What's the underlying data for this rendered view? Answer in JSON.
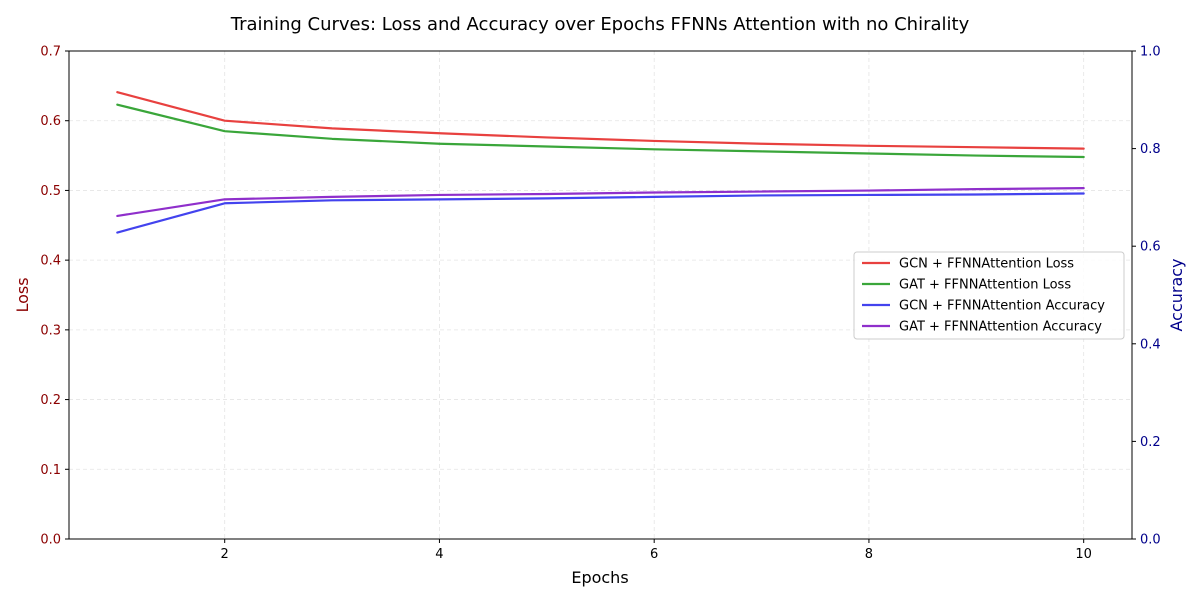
{
  "chart_data": {
    "type": "line",
    "title": "Training Curves: Loss and Accuracy over Epochs FFNNs Attention with no Chirality",
    "xlabel": "Epochs",
    "ylabel_left": "Loss",
    "ylabel_right": "Accuracy",
    "xlim": [
      0.55,
      10.45
    ],
    "ylim_left": [
      0,
      0.7
    ],
    "ylim_right": [
      0,
      1.0
    ],
    "x_ticks": [
      2,
      4,
      6,
      8,
      10
    ],
    "y_ticks_left": [
      0.0,
      0.1,
      0.2,
      0.3,
      0.4,
      0.5,
      0.6,
      0.7
    ],
    "y_ticks_right": [
      0.0,
      0.2,
      0.4,
      0.6,
      0.8,
      1.0
    ],
    "left_axis_color": "#8b0000",
    "right_axis_color": "#00008b",
    "grid": true,
    "legend_position": "center-right",
    "x": [
      1,
      2,
      3,
      4,
      5,
      6,
      7,
      8,
      9,
      10
    ],
    "series": [
      {
        "name": "GCN + FFNNAttention Loss",
        "axis": "left",
        "color": "#e8413f",
        "values": [
          0.641,
          0.6,
          0.589,
          0.582,
          0.576,
          0.571,
          0.567,
          0.564,
          0.562,
          0.56
        ]
      },
      {
        "name": "GAT + FFNNAttention Loss",
        "axis": "left",
        "color": "#3aa63a",
        "values": [
          0.623,
          0.585,
          0.574,
          0.567,
          0.563,
          0.559,
          0.556,
          0.553,
          0.55,
          0.548
        ]
      },
      {
        "name": "GCN + FFNNAttention Accuracy",
        "axis": "right",
        "color": "#4343ee",
        "values": [
          0.628,
          0.688,
          0.694,
          0.696,
          0.698,
          0.701,
          0.704,
          0.705,
          0.706,
          0.708
        ]
      },
      {
        "name": "GAT + FFNNAttention Accuracy",
        "axis": "right",
        "color": "#8f2fcb",
        "values": [
          0.662,
          0.696,
          0.701,
          0.705,
          0.707,
          0.71,
          0.712,
          0.714,
          0.717,
          0.719
        ]
      }
    ]
  }
}
